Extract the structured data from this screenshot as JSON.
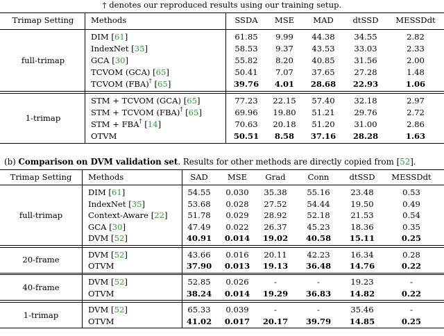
{
  "note": "† denotes our reproduced results using our training setup.",
  "table_a": {
    "headers": [
      "Trimap Setting",
      "Methods",
      "SSDA",
      "MSE",
      "MAD",
      "dtSSD",
      "MESSDdt"
    ],
    "groups": [
      {
        "setting": "full-trimap",
        "rows": [
          {
            "method": "DIM",
            "ref": "61",
            "dagger": false,
            "values": [
              "61.85",
              "9.99",
              "44.38",
              "34.55",
              "2.82"
            ],
            "bold": []
          },
          {
            "method": "IndexNet",
            "ref": "35",
            "dagger": false,
            "values": [
              "58.53",
              "9.37",
              "43.53",
              "33.03",
              "2.33"
            ],
            "bold": []
          },
          {
            "method": "GCA",
            "ref": "30",
            "dagger": false,
            "values": [
              "55.82",
              "8.20",
              "40.85",
              "31.56",
              "2.00"
            ],
            "bold": []
          },
          {
            "method": "TCVOM (GCA)",
            "ref": "65",
            "dagger": false,
            "values": [
              "50.41",
              "7.07",
              "37.65",
              "27.28",
              "1.48"
            ],
            "bold": []
          },
          {
            "method": "TCVOM (FBA)",
            "ref": "65",
            "dagger": true,
            "values": [
              "39.76",
              "4.01",
              "28.68",
              "22.93",
              "1.06"
            ],
            "bold": [
              0,
              1,
              2,
              3,
              4
            ]
          }
        ]
      },
      {
        "setting": "1-trimap",
        "rows": [
          {
            "method": "STM + TCVOM (GCA)",
            "ref": "65",
            "dagger": false,
            "values": [
              "77.23",
              "22.15",
              "57.40",
              "32.18",
              "2.97"
            ],
            "bold": []
          },
          {
            "method": "STM + TCVOM (FBA)",
            "ref": "65",
            "dagger": true,
            "values": [
              "69.96",
              "19.80",
              "51.21",
              "29.76",
              "2.72"
            ],
            "bold": []
          },
          {
            "method": "STM + FBA",
            "ref": "14",
            "dagger": true,
            "values": [
              "70.63",
              "20.18",
              "51.20",
              "31.00",
              "2.86"
            ],
            "bold": []
          },
          {
            "method": "OTVM",
            "ref": "",
            "dagger": false,
            "values": [
              "50.51",
              "8.58",
              "37.16",
              "28.28",
              "1.63"
            ],
            "bold": [
              0,
              1,
              2,
              3,
              4
            ]
          }
        ]
      }
    ]
  },
  "caption_b": {
    "prefix": "(b) ",
    "title": "Comparison on DVM validation set",
    "rest": ". Results for other methods are directly copied from [",
    "ref": "52",
    "end": "]."
  },
  "table_b": {
    "headers": [
      "Trimap Setting",
      "Methods",
      "SAD",
      "MSE",
      "Grad",
      "Conn",
      "dtSSD",
      "MESSDdt"
    ],
    "groups": [
      {
        "setting": "full-trimap",
        "rows": [
          {
            "method": "DIM",
            "ref": "61",
            "values": [
              "54.55",
              "0.030",
              "35.38",
              "55.16",
              "23.48",
              "0.53"
            ],
            "bold": []
          },
          {
            "method": "IndexNet",
            "ref": "35",
            "values": [
              "53.68",
              "0.028",
              "27.52",
              "54.44",
              "19.50",
              "0.49"
            ],
            "bold": []
          },
          {
            "method": "Context-Aware",
            "ref": "22",
            "values": [
              "51.78",
              "0.029",
              "28.92",
              "52.18",
              "21.53",
              "0.54"
            ],
            "bold": []
          },
          {
            "method": "GCA",
            "ref": "30",
            "values": [
              "47.49",
              "0.022",
              "26.37",
              "45.23",
              "18.36",
              "0.35"
            ],
            "bold": []
          },
          {
            "method": "DVM",
            "ref": "52",
            "values": [
              "40.91",
              "0.014",
              "19.02",
              "40.58",
              "15.11",
              "0.25"
            ],
            "bold": [
              0,
              1,
              2,
              3,
              4,
              5
            ]
          }
        ]
      },
      {
        "setting": "20-frame",
        "rows": [
          {
            "method": "DVM",
            "ref": "52",
            "values": [
              "43.66",
              "0.016",
              "20.11",
              "42.23",
              "16.34",
              "0.28"
            ],
            "bold": []
          },
          {
            "method": "OTVM",
            "ref": "",
            "values": [
              "37.90",
              "0.013",
              "19.13",
              "36.48",
              "14.76",
              "0.22"
            ],
            "bold": [
              0,
              1,
              2,
              3,
              4,
              5
            ]
          }
        ]
      },
      {
        "setting": "40-frame",
        "rows": [
          {
            "method": "DVM",
            "ref": "52",
            "values": [
              "52.85",
              "0.026",
              "-",
              "-",
              "19.23",
              "-"
            ],
            "bold": []
          },
          {
            "method": "OTVM",
            "ref": "",
            "values": [
              "38.24",
              "0.014",
              "19.29",
              "36.83",
              "14.82",
              "0.22"
            ],
            "bold": [
              0,
              1,
              2,
              3,
              4,
              5
            ]
          }
        ]
      },
      {
        "setting": "1-trimap",
        "rows": [
          {
            "method": "DVM",
            "ref": "52",
            "values": [
              "65.33",
              "0.039",
              "-",
              "-",
              "35.46",
              "-"
            ],
            "bold": []
          },
          {
            "method": "OTVM",
            "ref": "",
            "values": [
              "41.02",
              "0.017",
              "20.17",
              "39.79",
              "14.85",
              "0.25"
            ],
            "bold": [
              0,
              1,
              2,
              3,
              4,
              5
            ]
          }
        ]
      }
    ]
  }
}
